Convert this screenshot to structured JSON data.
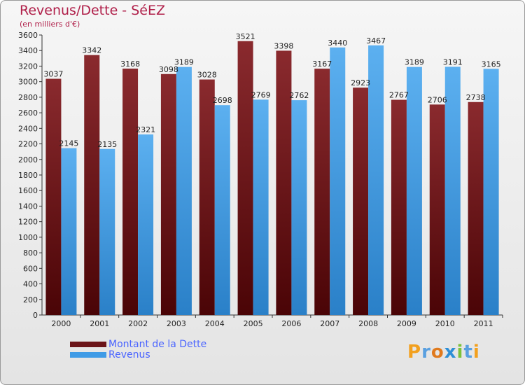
{
  "header": {
    "title": "Revenus/Dette - SéEZ",
    "subtitle": "(en milliers d'€)"
  },
  "chart_data": {
    "type": "bar",
    "categories": [
      "2000",
      "2001",
      "2002",
      "2003",
      "2004",
      "2005",
      "2006",
      "2007",
      "2008",
      "2009",
      "2010",
      "2011"
    ],
    "series": [
      {
        "name": "Montant de la Dette",
        "color": "#6b1418",
        "values": [
          3037,
          3342,
          3168,
          3098,
          3028,
          3521,
          3398,
          3167,
          2923,
          2767,
          2706,
          2738
        ]
      },
      {
        "name": "Revenus",
        "color": "#3f9be6",
        "values": [
          2145,
          2135,
          2321,
          3189,
          2698,
          2769,
          2762,
          3440,
          3467,
          3189,
          3191,
          3165
        ]
      }
    ],
    "ylim": [
      0,
      3600
    ],
    "yticks": [
      0,
      200,
      400,
      600,
      800,
      1000,
      1200,
      1400,
      1600,
      1800,
      2000,
      2200,
      2400,
      2600,
      2800,
      3000,
      3200,
      3400,
      3600
    ],
    "grid": false,
    "legend": "bottom-left"
  },
  "brand": {
    "logo_text": "Proxiti"
  }
}
